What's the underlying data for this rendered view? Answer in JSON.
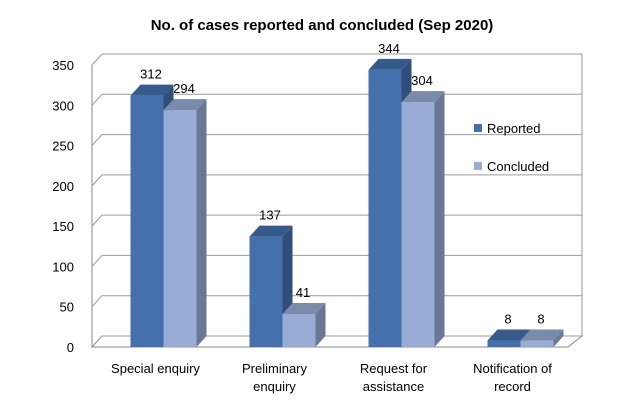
{
  "chart_data": {
    "type": "bar",
    "title": "No. of cases reported and concluded (Sep 2020)",
    "xlabel": "",
    "ylabel": "",
    "categories": [
      [
        "Special enquiry"
      ],
      [
        "Preliminary",
        "enquiry"
      ],
      [
        "Request for",
        "assistance"
      ],
      [
        "Notification of",
        "record"
      ]
    ],
    "series": [
      {
        "name": "Reported",
        "values": [
          312,
          137,
          344,
          8
        ],
        "color": "#4470AD"
      },
      {
        "name": "Concluded",
        "values": [
          294,
          41,
          304,
          8
        ],
        "color": "#98ACD6"
      }
    ],
    "ylim": [
      0,
      350
    ],
    "yticks": [
      0,
      50,
      100,
      150,
      200,
      250,
      300,
      350
    ],
    "grid": true,
    "legend_position": "right",
    "style": "3d-clustered-column",
    "data_labels": true
  }
}
